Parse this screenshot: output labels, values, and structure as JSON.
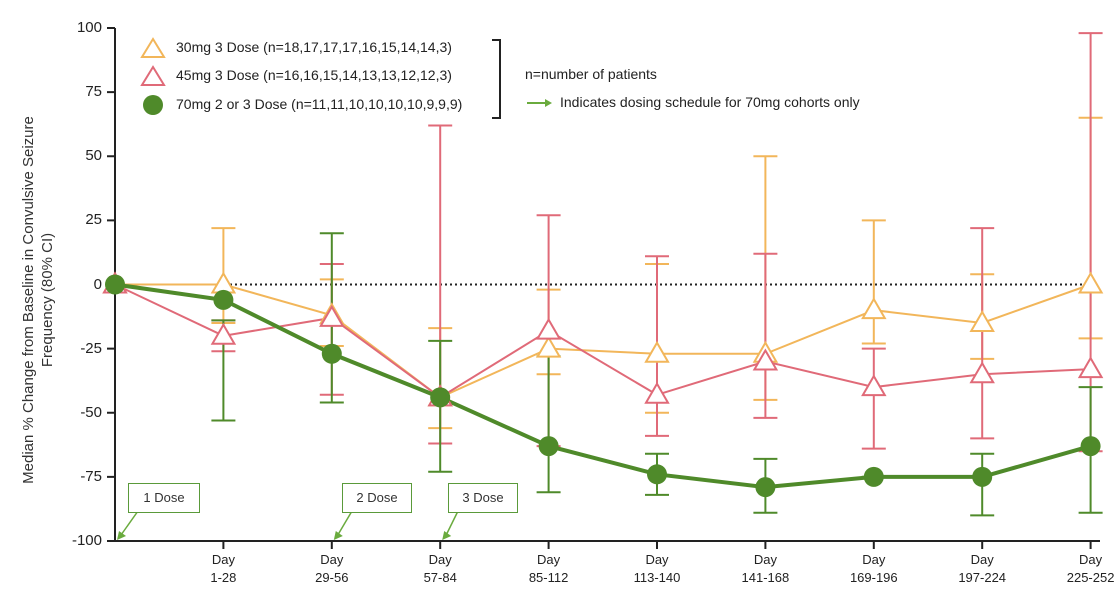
{
  "chart_data": {
    "type": "line",
    "ylabel": "Median % Change from Baseline in Convulsive Seizure Frequency (80% CI)",
    "ylim": [
      -100,
      100
    ],
    "yticks": [
      "100",
      "75",
      "50",
      "25",
      "0",
      "-25",
      "-50",
      "-75",
      "-100"
    ],
    "ytick_values": [
      100,
      75,
      50,
      25,
      0,
      -25,
      -50,
      -75,
      -100
    ],
    "categories": [
      {
        "line1": "",
        "line2": ""
      },
      {
        "line1": "Day",
        "line2": "1-28"
      },
      {
        "line1": "Day",
        "line2": "29-56"
      },
      {
        "line1": "Day",
        "line2": "57-84"
      },
      {
        "line1": "Day",
        "line2": "85-112"
      },
      {
        "line1": "Day",
        "line2": "113-140"
      },
      {
        "line1": "Day",
        "line2": "141-168"
      },
      {
        "line1": "Day",
        "line2": "169-196"
      },
      {
        "line1": "Day",
        "line2": "197-224"
      },
      {
        "line1": "Day",
        "line2": "225-252"
      }
    ],
    "series": [
      {
        "name": "30mg 3 Dose (n=18,17,17,17,16,15,14,14,3)",
        "color": "#f2b65a",
        "marker": "triangle-open",
        "values": [
          0,
          0,
          -12,
          -44,
          -25,
          -27,
          -27,
          -10,
          -15,
          0
        ],
        "ci_low": [
          0,
          -15,
          -24,
          -56,
          -35,
          -50,
          -45,
          -23,
          -29,
          -21
        ],
        "ci_high": [
          0,
          22,
          2,
          -17,
          -2,
          8,
          50,
          25,
          4,
          65
        ]
      },
      {
        "name": "45mg 3 Dose (n=16,16,15,14,13,13,12,12,3)",
        "color": "#e06a78",
        "marker": "triangle-open",
        "values": [
          0,
          -20,
          -13,
          -44,
          -18,
          -43,
          -30,
          -40,
          -35,
          -33
        ],
        "ci_low": [
          0,
          -26,
          -43,
          -62,
          -63,
          -59,
          -52,
          -64,
          -60,
          -65
        ],
        "ci_high": [
          0,
          -14,
          8,
          62,
          27,
          11,
          12,
          -25,
          22,
          98
        ]
      },
      {
        "name": "70mg 2 or 3 Dose (n=11,11,10,10,10,10,9,9,9)",
        "color": "#4f8a2a",
        "marker": "circle-filled",
        "values": [
          0,
          -6,
          -27,
          -44,
          -63,
          -74,
          -79,
          -75,
          -75,
          -63
        ],
        "ci_low": [
          0,
          -53,
          -46,
          -73,
          -81,
          -82,
          -89,
          -75,
          -90,
          -89
        ],
        "ci_high": [
          0,
          -14,
          20,
          -22,
          -28,
          -66,
          -68,
          -75,
          -66,
          -40
        ]
      }
    ],
    "reference_line": 0,
    "notes": {
      "n_def": "n=number of patients",
      "arrow_note": "Indicates dosing schedule for 70mg cohorts only"
    },
    "dose_markers": [
      {
        "label": "1 Dose",
        "category_index": 0
      },
      {
        "label": "2 Dose",
        "category_index": 2
      },
      {
        "label": "3 Dose",
        "category_index": 3
      }
    ]
  }
}
